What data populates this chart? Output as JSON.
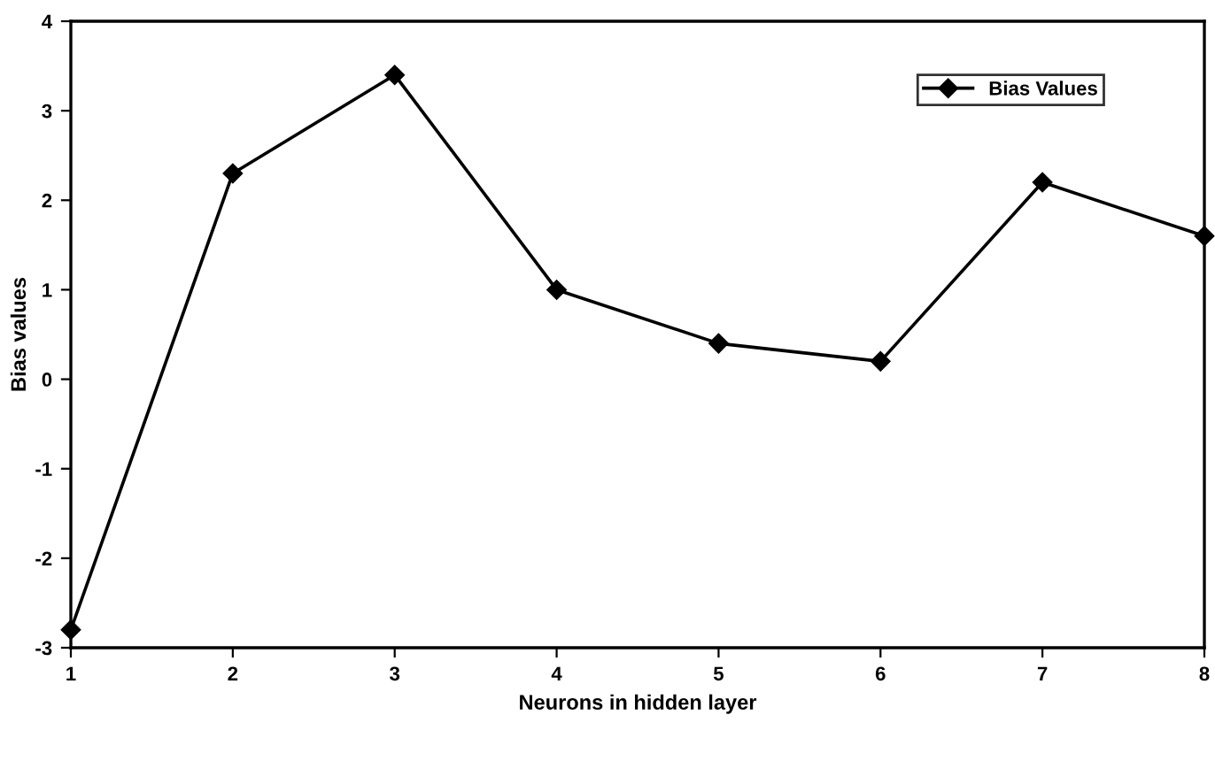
{
  "chart_data": {
    "type": "line",
    "xlabel": "Neurons in hidden layer",
    "ylabel": "Bias values",
    "x": [
      1,
      2,
      3,
      4,
      5,
      6,
      7,
      8
    ],
    "series": [
      {
        "name": "Bias Values",
        "color": "#000000",
        "values": [
          -2.8,
          2.3,
          3.4,
          1.0,
          0.4,
          0.2,
          2.2,
          1.6
        ]
      }
    ],
    "xlim": [
      1,
      8
    ],
    "xticks": [
      1,
      2,
      3,
      4,
      5,
      6,
      7,
      8
    ],
    "ylim": [
      -3,
      4
    ],
    "yticks": [
      -3,
      -2,
      -1,
      0,
      1,
      2,
      3,
      4
    ],
    "marker": "diamond",
    "line_style": "solid",
    "legend": "top right",
    "grid": false
  }
}
